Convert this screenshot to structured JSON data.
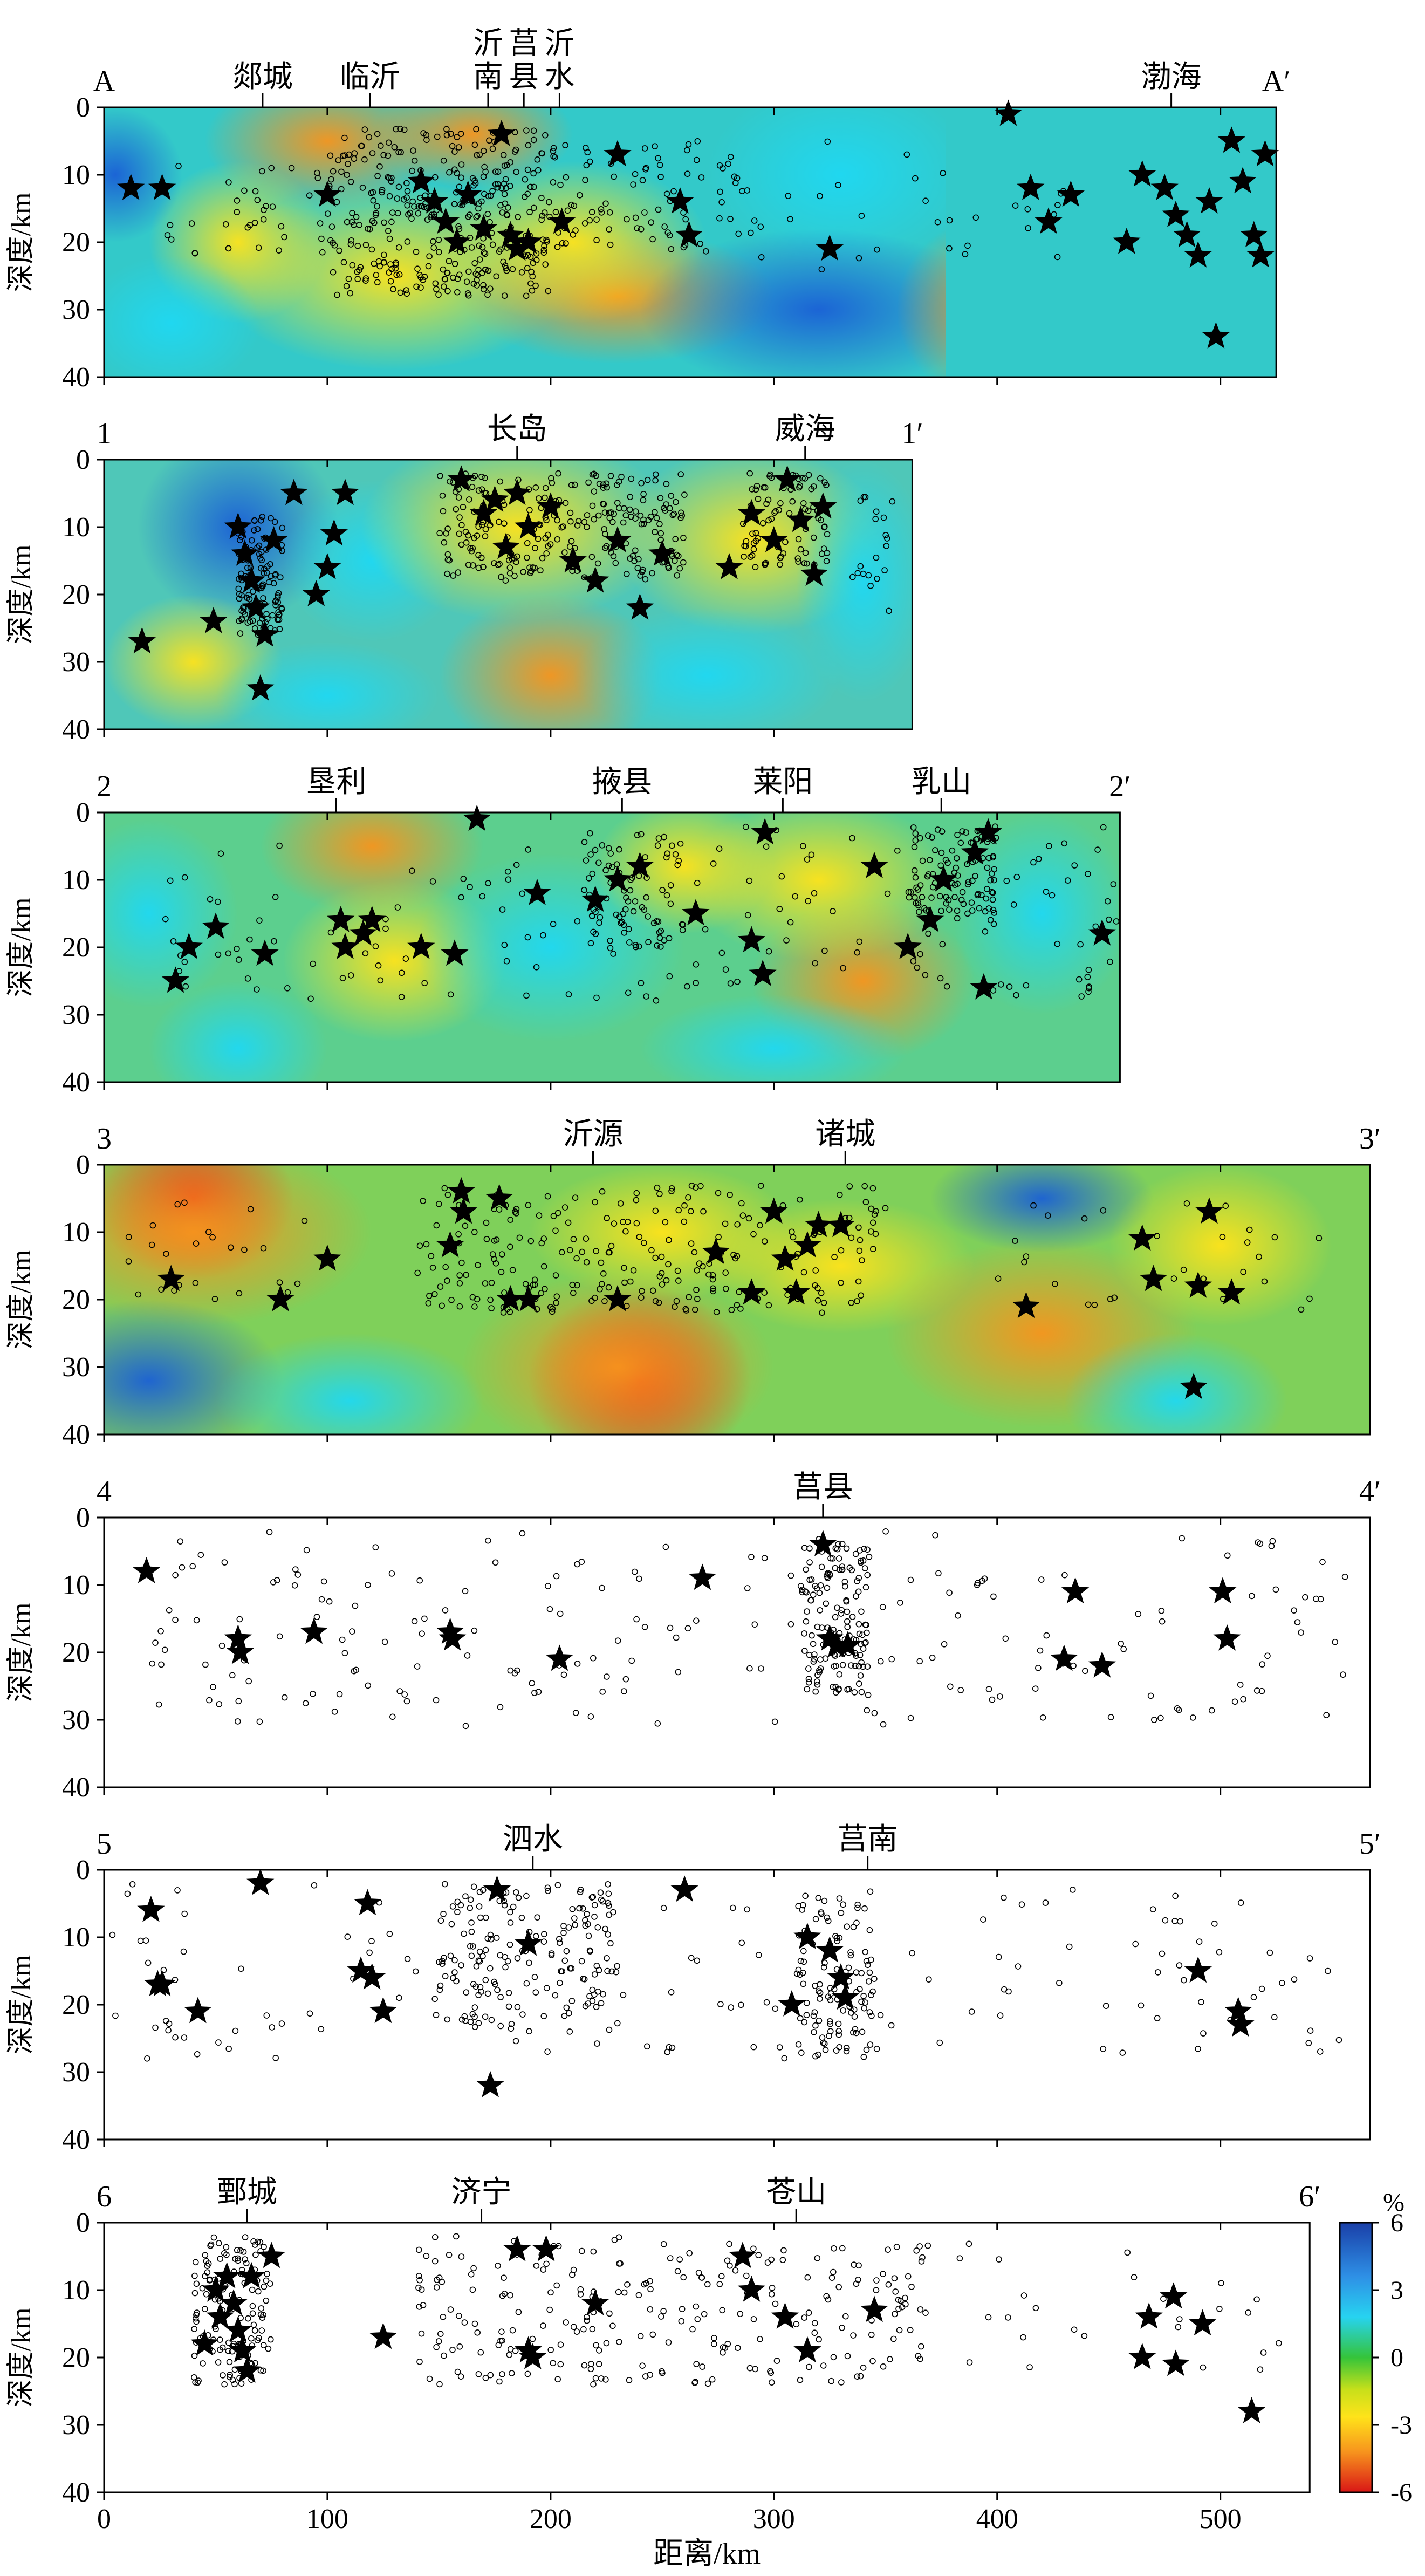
{
  "chart_data": {
    "type": "scatter",
    "description_free": true,
    "xlabel": "距离/km",
    "xlim": [
      0,
      540
    ],
    "xticks": [
      0,
      100,
      200,
      300,
      400,
      500
    ],
    "ylabel": "深度/km",
    "ylim": [
      40,
      0
    ],
    "yticks": [
      0,
      10,
      20,
      30,
      40
    ],
    "colorbar": {
      "unit": "%",
      "ticks": [
        6,
        3,
        0,
        -3,
        -6
      ]
    },
    "profiles": [
      {
        "id": "A",
        "start_label": "A",
        "end_label": "A′",
        "length": 525,
        "tomography": true,
        "places": [
          {
            "name": "郯城",
            "x": 71
          },
          {
            "name": "临沂",
            "x": 119
          },
          {
            "name": "沂南",
            "x": 172
          },
          {
            "name": "莒县",
            "x": 188
          },
          {
            "name": "沂水",
            "x": 204
          },
          {
            "name": "渤海",
            "x": 478
          }
        ],
        "stars": [
          [
            12,
            12
          ],
          [
            26,
            12
          ],
          [
            100,
            13
          ],
          [
            142,
            11
          ],
          [
            148,
            14
          ],
          [
            153,
            17
          ],
          [
            158,
            20
          ],
          [
            163,
            13
          ],
          [
            170,
            18
          ],
          [
            178,
            4
          ],
          [
            182,
            19
          ],
          [
            185,
            21
          ],
          [
            190,
            20
          ],
          [
            205,
            17
          ],
          [
            230,
            7
          ],
          [
            258,
            14
          ],
          [
            262,
            19
          ],
          [
            325,
            21
          ],
          [
            405,
            1
          ],
          [
            415,
            12
          ],
          [
            423,
            17
          ],
          [
            433,
            13
          ],
          [
            458,
            20
          ],
          [
            465,
            10
          ],
          [
            475,
            12
          ],
          [
            480,
            16
          ],
          [
            485,
            19
          ],
          [
            490,
            22
          ],
          [
            495,
            14
          ],
          [
            498,
            34
          ],
          [
            505,
            5
          ],
          [
            510,
            11
          ],
          [
            515,
            19
          ],
          [
            518,
            22
          ],
          [
            520,
            7
          ]
        ],
        "quake_clusters": [
          {
            "x": [
              100,
              200
            ],
            "y": [
              3,
              28
            ],
            "n": 360
          },
          {
            "x": [
              200,
              290
            ],
            "y": [
              5,
              22
            ],
            "n": 90
          },
          {
            "x": [
              25,
              100
            ],
            "y": [
              8,
              22
            ],
            "n": 35
          },
          {
            "x": [
              290,
              440
            ],
            "y": [
              5,
              25
            ],
            "n": 30
          }
        ]
      },
      {
        "id": "1",
        "start_label": "1",
        "end_label": "1′",
        "length": 362,
        "tomography": true,
        "places": [
          {
            "name": "长岛",
            "x": 185
          },
          {
            "name": "威海",
            "x": 314
          }
        ],
        "stars": [
          [
            17,
            27
          ],
          [
            49,
            24
          ],
          [
            60,
            10
          ],
          [
            63,
            14
          ],
          [
            66,
            18
          ],
          [
            68,
            22
          ],
          [
            70,
            34
          ],
          [
            72,
            26
          ],
          [
            76,
            12
          ],
          [
            85,
            5
          ],
          [
            95,
            20
          ],
          [
            100,
            16
          ],
          [
            103,
            11
          ],
          [
            108,
            5
          ],
          [
            160,
            3
          ],
          [
            170,
            8
          ],
          [
            175,
            6
          ],
          [
            180,
            13
          ],
          [
            185,
            5
          ],
          [
            190,
            10
          ],
          [
            200,
            7
          ],
          [
            210,
            15
          ],
          [
            220,
            18
          ],
          [
            230,
            12
          ],
          [
            240,
            22
          ],
          [
            250,
            14
          ],
          [
            280,
            16
          ],
          [
            290,
            8
          ],
          [
            300,
            12
          ],
          [
            306,
            3
          ],
          [
            312,
            9
          ],
          [
            318,
            17
          ],
          [
            322,
            7
          ]
        ],
        "quake_clusters": [
          {
            "x": [
              150,
              260
            ],
            "y": [
              2,
              18
            ],
            "n": 260
          },
          {
            "x": [
              285,
              325
            ],
            "y": [
              2,
              16
            ],
            "n": 90
          },
          {
            "x": [
              60,
              80
            ],
            "y": [
              8,
              26
            ],
            "n": 120
          },
          {
            "x": [
              335,
              355
            ],
            "y": [
              3,
              25
            ],
            "n": 20
          }
        ]
      },
      {
        "id": "2",
        "start_label": "2",
        "end_label": "2′",
        "length": 455,
        "tomography": true,
        "places": [
          {
            "name": "垦利",
            "x": 104
          },
          {
            "name": "掖县",
            "x": 232
          },
          {
            "name": "莱阳",
            "x": 304
          },
          {
            "name": "乳山",
            "x": 375
          }
        ],
        "stars": [
          [
            32,
            25
          ],
          [
            38,
            20
          ],
          [
            50,
            17
          ],
          [
            72,
            21
          ],
          [
            106,
            16
          ],
          [
            108,
            20
          ],
          [
            116,
            18
          ],
          [
            120,
            16
          ],
          [
            142,
            20
          ],
          [
            157,
            21
          ],
          [
            167,
            1
          ],
          [
            194,
            12
          ],
          [
            220,
            13
          ],
          [
            230,
            10
          ],
          [
            240,
            8
          ],
          [
            265,
            15
          ],
          [
            290,
            19
          ],
          [
            295,
            24
          ],
          [
            296,
            3
          ],
          [
            345,
            8
          ],
          [
            360,
            20
          ],
          [
            370,
            16
          ],
          [
            376,
            10
          ],
          [
            390,
            6
          ],
          [
            396,
            3
          ],
          [
            394,
            26
          ],
          [
            447,
            18
          ]
        ],
        "quake_clusters": [
          {
            "x": [
              215,
              260
            ],
            "y": [
              3,
              20
            ],
            "n": 80
          },
          {
            "x": [
              360,
              400
            ],
            "y": [
              2,
              15
            ],
            "n": 100
          },
          {
            "x": [
              20,
              460
            ],
            "y": [
              2,
              28
            ],
            "n": 180
          }
        ]
      },
      {
        "id": "3",
        "start_label": "3",
        "end_label": "3′",
        "length": 567,
        "tomography": true,
        "places": [
          {
            "name": "沂源",
            "x": 219
          },
          {
            "name": "诸城",
            "x": 332
          }
        ],
        "stars": [
          [
            30,
            17
          ],
          [
            79,
            20
          ],
          [
            100,
            14
          ],
          [
            155,
            12
          ],
          [
            160,
            4
          ],
          [
            161,
            7
          ],
          [
            177,
            5
          ],
          [
            182,
            20
          ],
          [
            190,
            20
          ],
          [
            230,
            20
          ],
          [
            274,
            13
          ],
          [
            290,
            19
          ],
          [
            300,
            7
          ],
          [
            305,
            14
          ],
          [
            310,
            19
          ],
          [
            315,
            12
          ],
          [
            320,
            9
          ],
          [
            330,
            9
          ],
          [
            413,
            21
          ],
          [
            465,
            11
          ],
          [
            470,
            17
          ],
          [
            495,
            7
          ],
          [
            490,
            18
          ],
          [
            505,
            19
          ],
          [
            488,
            33
          ]
        ],
        "quake_clusters": [
          {
            "x": [
              140,
              350
            ],
            "y": [
              3,
              22
            ],
            "n": 260
          },
          {
            "x": [
              5,
              90
            ],
            "y": [
              5,
              20
            ],
            "n": 25
          },
          {
            "x": [
              400,
              550
            ],
            "y": [
              5,
              22
            ],
            "n": 30
          }
        ]
      },
      {
        "id": "4",
        "start_label": "4",
        "end_label": "4′",
        "length": 567,
        "tomography": false,
        "places": [
          {
            "name": "莒县",
            "x": 322
          }
        ],
        "stars": [
          [
            19,
            8
          ],
          [
            60,
            18
          ],
          [
            61,
            20
          ],
          [
            94,
            17
          ],
          [
            155,
            17
          ],
          [
            156,
            18
          ],
          [
            204,
            21
          ],
          [
            268,
            9
          ],
          [
            322,
            4
          ],
          [
            325,
            18
          ],
          [
            328,
            19
          ],
          [
            333,
            19
          ],
          [
            430,
            21
          ],
          [
            435,
            11
          ],
          [
            447,
            22
          ],
          [
            501,
            11
          ],
          [
            503,
            18
          ]
        ],
        "quake_clusters": [
          {
            "x": [
              312,
              342
            ],
            "y": [
              3,
              26
            ],
            "n": 140
          },
          {
            "x": [
              20,
              560
            ],
            "y": [
              2,
              31
            ],
            "n": 210
          }
        ]
      },
      {
        "id": "5",
        "start_label": "5",
        "end_label": "5′",
        "length": 567,
        "tomography": false,
        "places": [
          {
            "name": "泗水",
            "x": 192
          },
          {
            "name": "莒南",
            "x": 342
          }
        ],
        "stars": [
          [
            21,
            6
          ],
          [
            24,
            17
          ],
          [
            26,
            17
          ],
          [
            42,
            21
          ],
          [
            70,
            2
          ],
          [
            115,
            15
          ],
          [
            118,
            5
          ],
          [
            120,
            16
          ],
          [
            125,
            21
          ],
          [
            176,
            3
          ],
          [
            190,
            11
          ],
          [
            173,
            32
          ],
          [
            260,
            3
          ],
          [
            308,
            20
          ],
          [
            315,
            10
          ],
          [
            325,
            12
          ],
          [
            330,
            16
          ],
          [
            332,
            19
          ],
          [
            490,
            15
          ],
          [
            508,
            21
          ],
          [
            509,
            23
          ]
        ],
        "quake_clusters": [
          {
            "x": [
              150,
              230
            ],
            "y": [
              2,
              24
            ],
            "n": 170
          },
          {
            "x": [
              310,
              345
            ],
            "y": [
              3,
              28
            ],
            "n": 110
          },
          {
            "x": [
              0,
              560
            ],
            "y": [
              2,
              28
            ],
            "n": 150
          }
        ]
      },
      {
        "id": "6",
        "start_label": "6",
        "end_label": "6′",
        "length": 540,
        "tomography": false,
        "places": [
          {
            "name": "鄄城",
            "x": 64
          },
          {
            "name": "济宁",
            "x": 169
          },
          {
            "name": "苍山",
            "x": 310
          }
        ],
        "stars": [
          [
            45,
            18
          ],
          [
            50,
            10
          ],
          [
            52,
            14
          ],
          [
            55,
            8
          ],
          [
            58,
            12
          ],
          [
            60,
            16
          ],
          [
            62,
            19
          ],
          [
            64,
            22
          ],
          [
            66,
            8
          ],
          [
            75,
            5
          ],
          [
            125,
            17
          ],
          [
            185,
            4
          ],
          [
            190,
            19
          ],
          [
            192,
            20
          ],
          [
            198,
            4
          ],
          [
            220,
            12
          ],
          [
            286,
            5
          ],
          [
            290,
            10
          ],
          [
            305,
            14
          ],
          [
            315,
            19
          ],
          [
            345,
            13
          ],
          [
            465,
            20
          ],
          [
            468,
            14
          ],
          [
            479,
            11
          ],
          [
            480,
            21
          ],
          [
            492,
            15
          ],
          [
            514,
            28
          ]
        ],
        "quake_clusters": [
          {
            "x": [
              40,
              75
            ],
            "y": [
              2,
              24
            ],
            "n": 150
          },
          {
            "x": [
              140,
              370
            ],
            "y": [
              2,
              24
            ],
            "n": 260
          },
          {
            "x": [
              370,
              530
            ],
            "y": [
              3,
              22
            ],
            "n": 25
          }
        ]
      }
    ]
  }
}
